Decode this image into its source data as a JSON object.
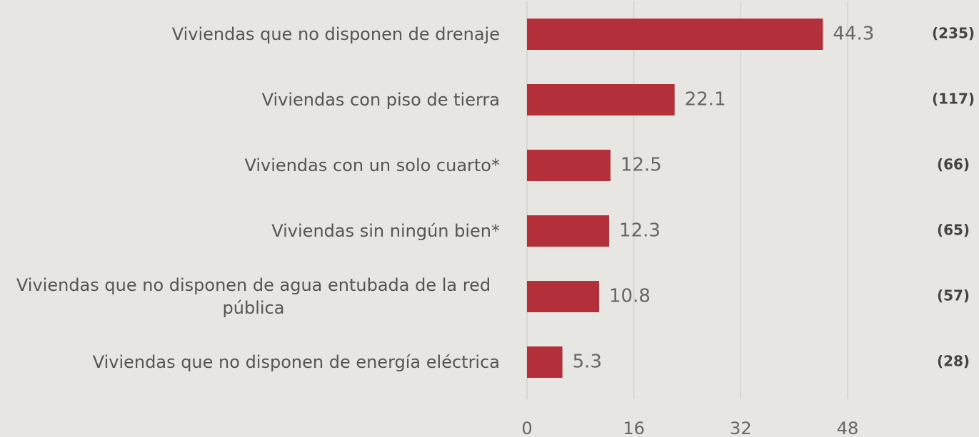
{
  "chart_data": {
    "type": "bar",
    "orientation": "horizontal",
    "categories": [
      "Viviendas que no disponen de drenaje",
      "Viviendas con piso de tierra",
      "Viviendas con un solo cuarto*",
      "Viviendas sin ningún bien*",
      "Viviendas que no disponen de agua entubada de la red pública",
      "Viviendas que no disponen de energía eléctrica"
    ],
    "values": [
      44.3,
      22.1,
      12.5,
      12.3,
      10.8,
      5.3
    ],
    "annotations": [
      "(235)",
      "(117)",
      "(66)",
      "(65)",
      "(57)",
      "(28)"
    ],
    "color": "#b3303a",
    "xlim": [
      0,
      48
    ],
    "xticks": [
      0,
      16,
      32,
      48
    ],
    "grid": true
  }
}
